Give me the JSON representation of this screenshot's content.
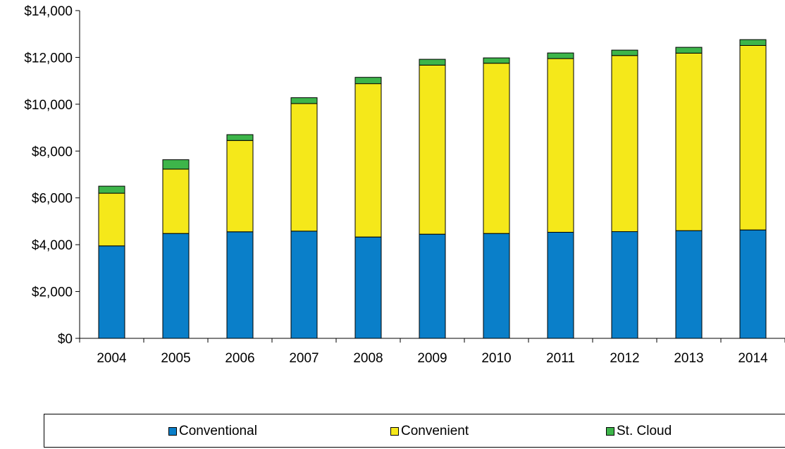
{
  "chart_data": {
    "type": "bar",
    "stacked": true,
    "categories": [
      "2004",
      "2005",
      "2006",
      "2007",
      "2008",
      "2009",
      "2010",
      "2011",
      "2012",
      "2013",
      "2014"
    ],
    "series": [
      {
        "name": "Conventional",
        "color": "#0a7fc9",
        "values": [
          3950,
          4480,
          4550,
          4580,
          4330,
          4450,
          4480,
          4530,
          4560,
          4600,
          4630
        ]
      },
      {
        "name": "Convenient",
        "color": "#f5e81a",
        "values": [
          2250,
          2750,
          3900,
          5450,
          6550,
          7220,
          7270,
          7420,
          7520,
          7580,
          7880
        ]
      },
      {
        "name": "St. Cloud",
        "color": "#3db54a",
        "values": [
          300,
          400,
          250,
          250,
          270,
          250,
          230,
          240,
          230,
          250,
          250
        ]
      }
    ],
    "yticks": [
      "$0",
      "$2,000",
      "$4,000",
      "$6,000",
      "$8,000",
      "$10,000",
      "$12,000",
      "$14,000"
    ],
    "ylim": [
      0,
      14000
    ],
    "title": "",
    "xlabel": "",
    "ylabel": "",
    "grid": false,
    "legend_position": "bottom"
  }
}
